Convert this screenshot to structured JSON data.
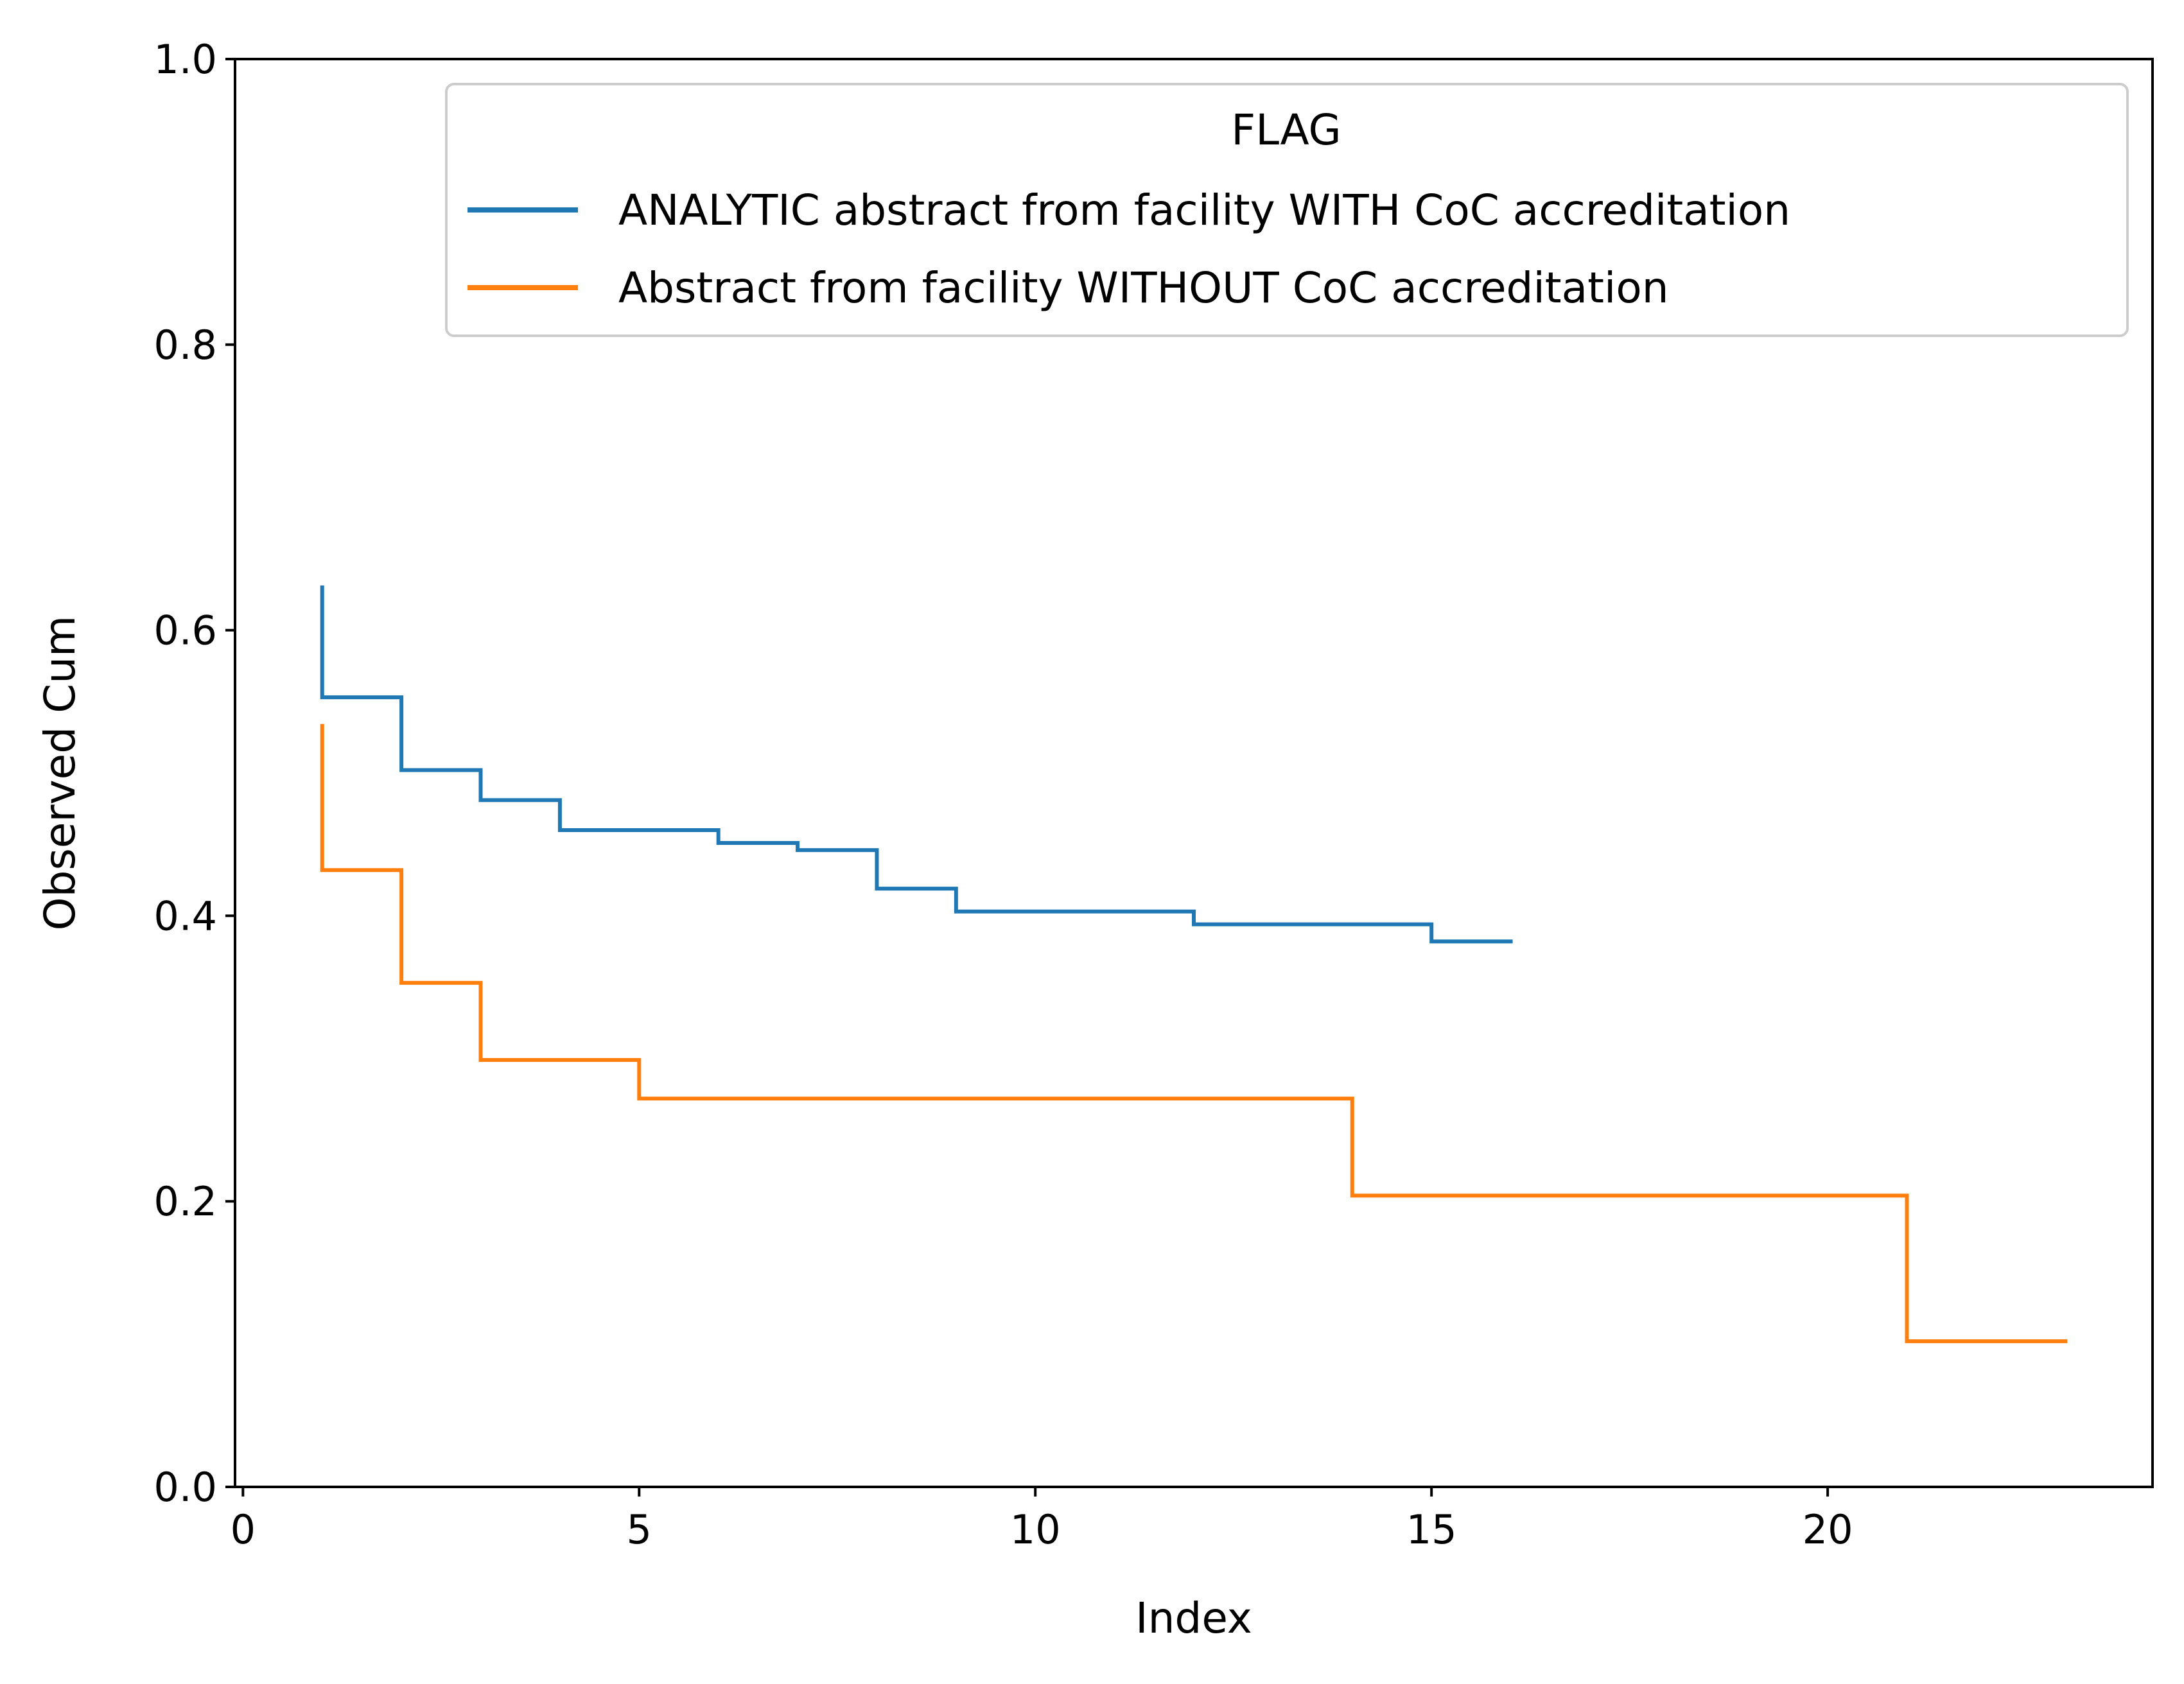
{
  "chart_data": {
    "type": "line",
    "drawstyle": "steps-post",
    "title": "",
    "xlabel": "Index",
    "ylabel": "Observed Cum",
    "xlim": [
      -0.1,
      24.1
    ],
    "ylim": [
      0.0,
      1.0
    ],
    "xticks": [
      0,
      5,
      10,
      15,
      20
    ],
    "xtick_labels": [
      "0",
      "5",
      "10",
      "15",
      "20"
    ],
    "yticks": [
      0.0,
      0.2,
      0.4,
      0.6,
      0.8,
      1.0
    ],
    "ytick_labels": [
      "0.0",
      "0.2",
      "0.4",
      "0.6",
      "0.8",
      "1.0"
    ],
    "grid": false,
    "legend": {
      "title": "FLAG",
      "placement": "top-right"
    },
    "series": [
      {
        "name": "ANALYTIC abstract from facility WITH CoC accreditation",
        "color": "#1f77b4",
        "x": [
          1,
          1,
          2,
          3,
          4,
          5,
          6,
          7,
          8,
          9,
          10,
          11,
          12,
          13,
          14,
          15,
          16
        ],
        "y": [
          0.63,
          0.553,
          0.502,
          0.481,
          0.46,
          0.46,
          0.451,
          0.446,
          0.419,
          0.403,
          0.403,
          0.403,
          0.394,
          0.394,
          0.394,
          0.382,
          0.382
        ]
      },
      {
        "name": "Abstract from facility WITHOUT CoC accreditation",
        "color": "#ff7f0e",
        "x": [
          1,
          1,
          2,
          3,
          5,
          14,
          21,
          23
        ],
        "y": [
          0.533,
          0.432,
          0.353,
          0.299,
          0.272,
          0.204,
          0.102,
          0.102
        ]
      }
    ]
  }
}
